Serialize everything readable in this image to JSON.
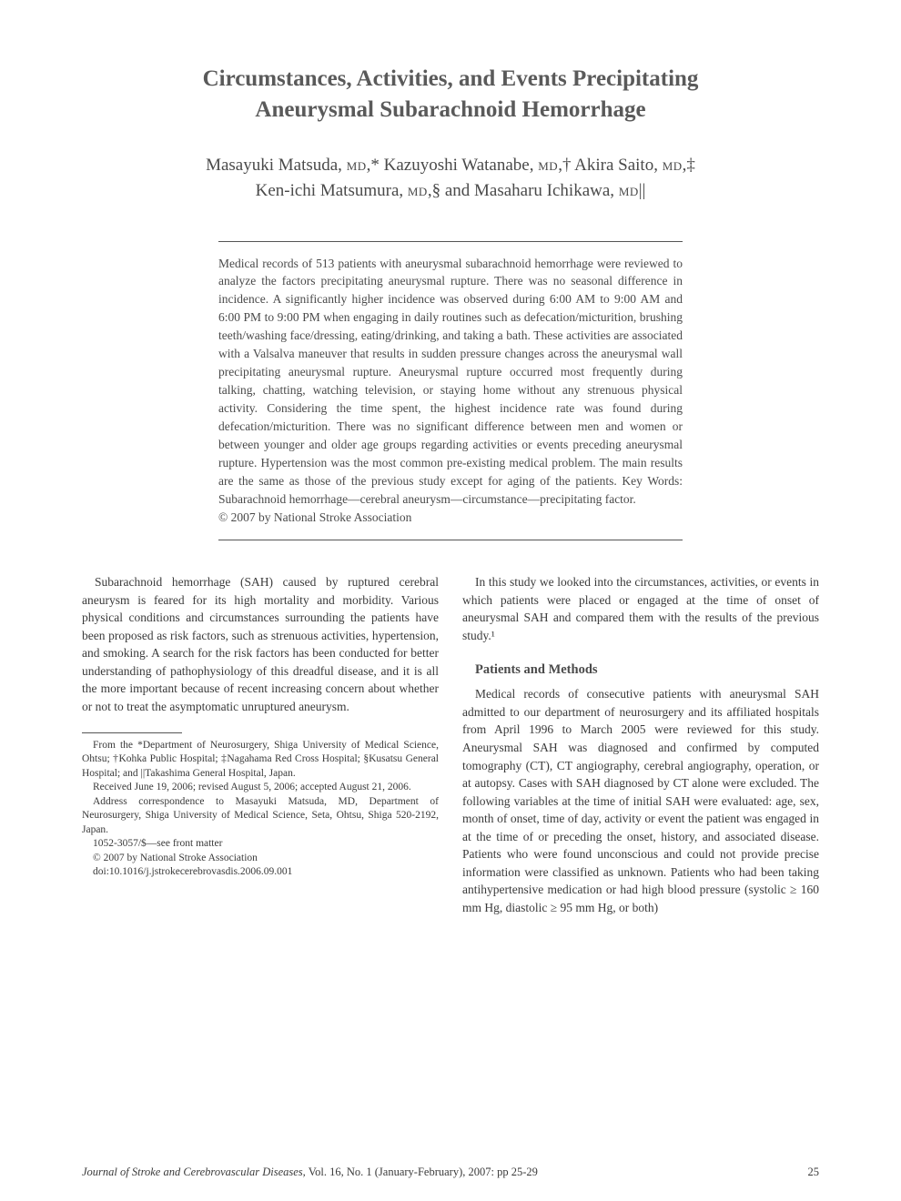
{
  "title_line1": "Circumstances, Activities, and Events Precipitating",
  "title_line2": "Aneurysmal Subarachnoid Hemorrhage",
  "authors_line1": "Masayuki Matsuda, MD,* Kazuyoshi Watanabe, MD,† Akira Saito, MD,‡",
  "authors_line2": "Ken-ichi Matsumura, MD,§ and Masaharu Ichikawa, MD||",
  "abstract": "Medical records of 513 patients with aneurysmal subarachnoid hemorrhage were reviewed to analyze the factors precipitating aneurysmal rupture. There was no seasonal difference in incidence. A significantly higher incidence was observed during 6:00 AM to 9:00 AM and 6:00 PM to 9:00 PM when engaging in daily routines such as defecation/micturition, brushing teeth/washing face/dressing, eating/drinking, and taking a bath. These activities are associated with a Valsalva maneuver that results in sudden pressure changes across the aneurysmal wall precipitating aneurysmal rupture. Aneurysmal rupture occurred most frequently during talking, chatting, watching television, or staying home without any strenuous physical activity. Considering the time spent, the highest incidence rate was found during defecation/micturition. There was no significant difference between men and women or between younger and older age groups regarding activities or events preceding aneurysmal rupture. Hypertension was the most common pre-existing medical problem. The main results are the same as those of the previous study except for aging of the patients. Key Words: Subarachnoid hemorrhage—cerebral aneurysm—circumstance—precipitating factor.",
  "copyright": "© 2007 by National Stroke Association",
  "left_col": {
    "p1": "Subarachnoid hemorrhage (SAH) caused by ruptured cerebral aneurysm is feared for its high mortality and morbidity. Various physical conditions and circumstances surrounding the patients have been proposed as risk factors, such as strenuous activities, hypertension, and smoking. A search for the risk factors has been conducted for better understanding of pathophysiology of this dreadful disease, and it is all the more important because of recent increasing concern about whether or not to treat the asymptomatic unruptured aneurysm."
  },
  "right_col": {
    "p1": "In this study we looked into the circumstances, activities, or events in which patients were placed or engaged at the time of onset of aneurysmal SAH and compared them with the results of the previous study.¹",
    "h1": "Patients and Methods",
    "p2": "Medical records of consecutive patients with aneurysmal SAH admitted to our department of neurosurgery and its affiliated hospitals from April 1996 to March 2005 were reviewed for this study. Aneurysmal SAH was diagnosed and confirmed by computed tomography (CT), CT angiography, cerebral angiography, operation, or at autopsy. Cases with SAH diagnosed by CT alone were excluded. The following variables at the time of initial SAH were evaluated: age, sex, month of onset, time of day, activity or event the patient was engaged in at the time of or preceding the onset, history, and associated disease. Patients who were found unconscious and could not provide precise information were classified as unknown. Patients who had been taking antihypertensive medication or had high blood pressure (systolic ≥ 160 mm Hg, diastolic ≥ 95 mm Hg, or both)"
  },
  "footnotes": {
    "f1": "From the *Department of Neurosurgery, Shiga University of Medical Science, Ohtsu; †Kohka Public Hospital; ‡Nagahama Red Cross Hospital; §Kusatsu General Hospital; and ||Takashima General Hospital, Japan.",
    "f2": "Received June 19, 2006; revised August 5, 2006; accepted August 21, 2006.",
    "f3": "Address correspondence to Masayuki Matsuda, MD, Department of Neurosurgery, Shiga University of Medical Science, Seta, Ohtsu, Shiga 520-2192, Japan.",
    "f4": "1052-3057/$—see front matter",
    "f5": "© 2007 by National Stroke Association",
    "f6": "doi:10.1016/j.jstrokecerebrovasdis.2006.09.001"
  },
  "footer": {
    "journal": "Journal of Stroke and Cerebrovascular Diseases,",
    "vol": " Vol. 16, No. 1 (January-February), 2007: pp 25-29",
    "page": "25"
  }
}
